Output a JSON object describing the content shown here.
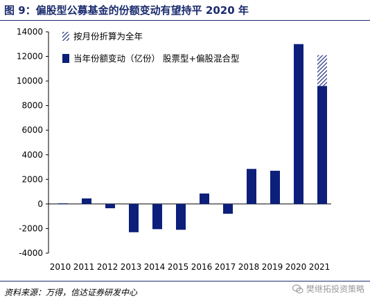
{
  "title": "图 9：偏股型公募基金的份额变动有望持平 2020 年",
  "source": "资料来源：万得，信达证券研发中心",
  "watermark": "樊继拓投资策略",
  "colors": {
    "bar": "#0c1f7a",
    "accent": "#1a2b6d"
  },
  "chart_data": {
    "type": "bar",
    "categories": [
      "2010",
      "2011",
      "2012",
      "2013",
      "2014",
      "2015",
      "2016",
      "2017",
      "2018",
      "2019",
      "2020",
      "2021"
    ],
    "series": [
      {
        "name": "当年份额变动（亿份） 股票型+偏股混合型",
        "style": "solid",
        "values": [
          50,
          450,
          -350,
          -2300,
          -2050,
          -2100,
          850,
          -800,
          2850,
          2700,
          13000,
          9600
        ]
      },
      {
        "name": "按月份折算为全年",
        "style": "hatched",
        "values": [
          0,
          0,
          0,
          0,
          0,
          0,
          0,
          0,
          0,
          0,
          0,
          2500
        ]
      }
    ],
    "yticks": [
      "14000",
      "12000",
      "10000",
      "8000",
      "6000",
      "4000",
      "2000",
      "0",
      "-2000",
      "-4000"
    ],
    "ylim": [
      -4000,
      14000
    ],
    "legend_position": "top-left"
  }
}
